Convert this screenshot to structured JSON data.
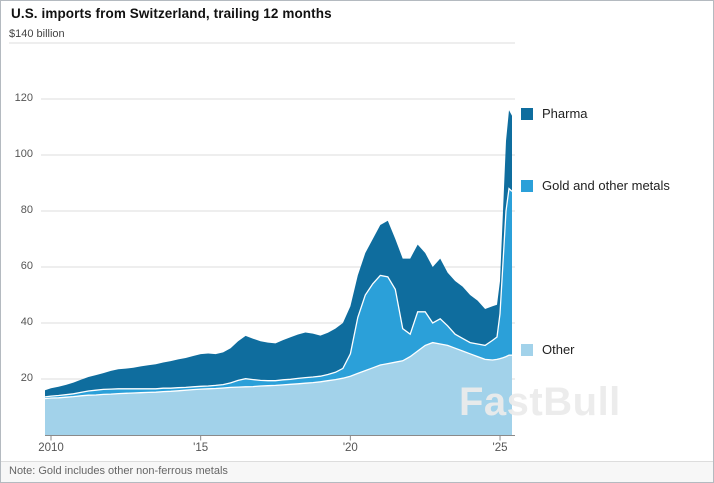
{
  "unit_label": "$140 billion",
  "note": "Note: Gold includes other non-ferrous metals",
  "watermark": "FastBull",
  "legend": [
    {
      "label": "Pharma",
      "color": "#0f6d9e"
    },
    {
      "label": "Gold and other metals",
      "color": "#2ba0d9"
    },
    {
      "label": "Other",
      "color": "#a2d2ea"
    }
  ],
  "chart_data": {
    "type": "area",
    "stacked": true,
    "title": "U.S. imports from Switzerland, trailing 12 months",
    "ylabel": "$ billion",
    "ylim": [
      0,
      140
    ],
    "yticks": [
      20,
      40,
      60,
      80,
      100,
      120
    ],
    "ytick_top": 140,
    "xlim": [
      2009.8,
      2025.5
    ],
    "xticks": [
      {
        "value": 2010,
        "label": "2010"
      },
      {
        "value": 2015,
        "label": "'15"
      },
      {
        "value": 2020,
        "label": "'20"
      },
      {
        "value": 2025,
        "label": "'25"
      }
    ],
    "grid": true,
    "legend_position": "right",
    "x": [
      2009.8,
      2010,
      2010.25,
      2010.5,
      2010.75,
      2011,
      2011.25,
      2011.5,
      2011.75,
      2012,
      2012.25,
      2012.5,
      2012.75,
      2013,
      2013.25,
      2013.5,
      2013.75,
      2014,
      2014.25,
      2014.5,
      2014.75,
      2015,
      2015.25,
      2015.5,
      2015.75,
      2016,
      2016.25,
      2016.5,
      2016.75,
      2017,
      2017.25,
      2017.5,
      2017.75,
      2018,
      2018.25,
      2018.5,
      2018.75,
      2019,
      2019.25,
      2019.5,
      2019.75,
      2020,
      2020.25,
      2020.5,
      2020.75,
      2021,
      2021.25,
      2021.5,
      2021.75,
      2022,
      2022.25,
      2022.5,
      2022.75,
      2023,
      2023.25,
      2023.5,
      2023.75,
      2024,
      2024.25,
      2024.5,
      2024.75,
      2024.9,
      2025,
      2025.1,
      2025.2,
      2025.3,
      2025.4
    ],
    "series": [
      {
        "name": "Other",
        "color": "#a2d2ea",
        "values": [
          13.0,
          13.2,
          13.3,
          13.5,
          13.7,
          14.0,
          14.2,
          14.3,
          14.5,
          14.6,
          14.8,
          14.9,
          15.0,
          15.1,
          15.2,
          15.3,
          15.5,
          15.6,
          15.8,
          16.0,
          16.2,
          16.4,
          16.5,
          16.6,
          16.8,
          17.0,
          17.1,
          17.2,
          17.3,
          17.5,
          17.6,
          17.7,
          17.9,
          18.1,
          18.3,
          18.5,
          18.7,
          19.0,
          19.4,
          19.8,
          20.3,
          21.0,
          22.0,
          23.0,
          24.0,
          25.0,
          25.5,
          26.0,
          26.5,
          28.0,
          30.0,
          32.0,
          33.0,
          32.5,
          32.0,
          31.0,
          30.0,
          29.0,
          28.0,
          27.0,
          26.8,
          27.0,
          27.3,
          27.6,
          28.0,
          28.5,
          28.5
        ]
      },
      {
        "name": "Gold and other metals",
        "color": "#2ba0d9",
        "values": [
          0.6,
          0.7,
          0.8,
          0.9,
          1.0,
          1.2,
          1.5,
          1.7,
          1.8,
          1.8,
          1.7,
          1.6,
          1.5,
          1.4,
          1.3,
          1.2,
          1.2,
          1.1,
          1.1,
          1.0,
          1.0,
          1.0,
          1.0,
          1.1,
          1.2,
          1.6,
          2.4,
          2.9,
          2.5,
          2.0,
          1.8,
          1.7,
          1.8,
          1.8,
          1.9,
          2.0,
          2.0,
          2.0,
          2.2,
          2.6,
          3.5,
          8.0,
          20.0,
          27.0,
          30.0,
          32.0,
          31.0,
          26.0,
          11.5,
          8.0,
          14.0,
          12.0,
          7.0,
          9.0,
          7.0,
          5.0,
          4.5,
          4.0,
          4.5,
          5.0,
          7.0,
          8.0,
          16.0,
          34.0,
          52.0,
          59.5,
          58.5
        ]
      },
      {
        "name": "Pharma",
        "color": "#0f6d9e",
        "values": [
          2.4,
          2.8,
          3.1,
          3.5,
          4.0,
          4.5,
          5.0,
          5.4,
          5.8,
          6.5,
          7.0,
          7.2,
          7.5,
          8.0,
          8.4,
          8.8,
          9.2,
          9.7,
          10.1,
          10.5,
          11.0,
          11.5,
          11.6,
          11.2,
          11.5,
          12.4,
          14.0,
          15.3,
          14.6,
          14.0,
          13.6,
          13.3,
          14.2,
          15.0,
          15.7,
          16.1,
          15.5,
          14.5,
          14.9,
          15.6,
          16.2,
          17.0,
          15.0,
          15.0,
          16.0,
          18.0,
          20.0,
          18.0,
          25.0,
          27.0,
          24.0,
          21.0,
          20.0,
          21.5,
          19.0,
          19.0,
          18.5,
          17.0,
          15.5,
          13.0,
          12.2,
          11.5,
          11.7,
          18.4,
          25.0,
          28.0,
          27.0
        ]
      }
    ],
    "note": "Note: Gold includes other non-ferrous metals"
  }
}
